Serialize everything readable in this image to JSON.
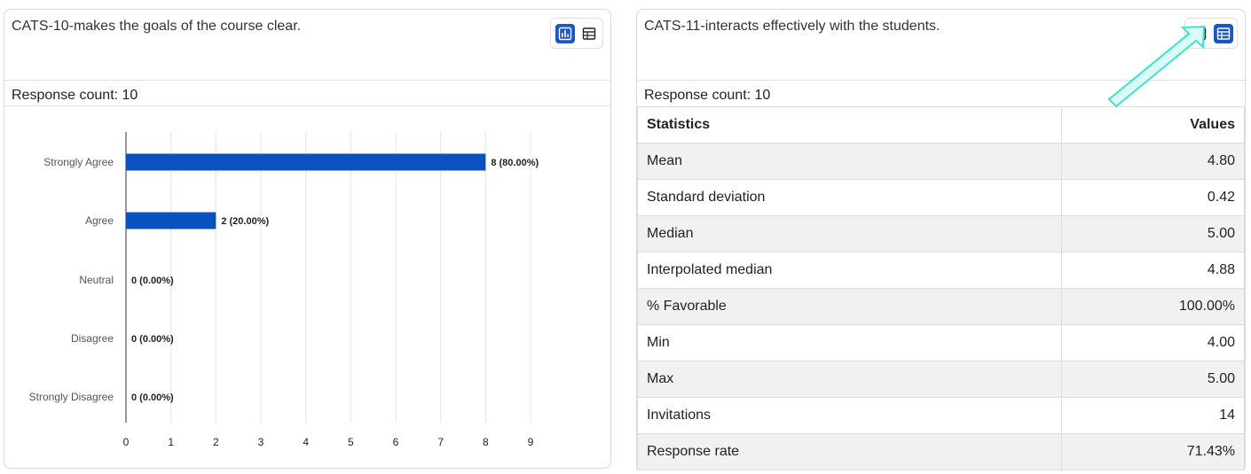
{
  "left_card": {
    "question": "CATS-10-makes the goals of the course clear.",
    "response_count": "Response count: 10",
    "active_view": "chart"
  },
  "right_card": {
    "question": "CATS-11-interacts effectively with the students.",
    "response_count": "Response count: 10",
    "active_view": "table",
    "table_headers": [
      "Statistics",
      "Values"
    ],
    "rows": [
      {
        "label": "Mean",
        "value": "4.80"
      },
      {
        "label": "Standard deviation",
        "value": "0.42"
      },
      {
        "label": "Median",
        "value": "5.00"
      },
      {
        "label": "Interpolated median",
        "value": "4.88"
      },
      {
        "label": "% Favorable",
        "value": "100.00%"
      },
      {
        "label": "Min",
        "value": "4.00"
      },
      {
        "label": "Max",
        "value": "5.00"
      },
      {
        "label": "Invitations",
        "value": "14"
      },
      {
        "label": "Response rate",
        "value": "71.43%"
      }
    ]
  },
  "colors": {
    "accent": "#1a56c4",
    "bar": "#0a52c0",
    "annotation_arrow": "#40e0d0"
  },
  "chart_data": {
    "type": "bar",
    "orientation": "horizontal",
    "categories": [
      "Strongly Agree",
      "Agree",
      "Neutral",
      "Disagree",
      "Strongly Disagree"
    ],
    "values": [
      8,
      2,
      0,
      0,
      0
    ],
    "data_labels": [
      "8 (80.00%)",
      "2 (20.00%)",
      "0 (0.00%)",
      "0 (0.00%)",
      "0 (0.00%)"
    ],
    "xlim": [
      0,
      9
    ],
    "x_ticks": [
      "0",
      "1",
      "2",
      "3",
      "4",
      "5",
      "6",
      "7",
      "8",
      "9"
    ],
    "grid": true
  }
}
